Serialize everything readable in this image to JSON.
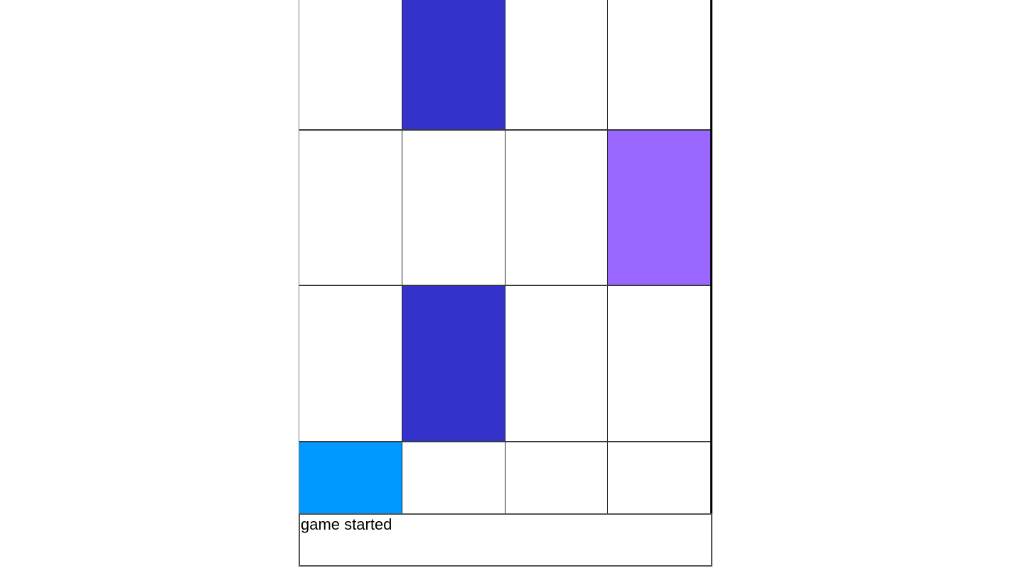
{
  "status": {
    "message": "game started"
  },
  "board": {
    "rows": 4,
    "columns": 4,
    "tiles": [
      {
        "row": 1,
        "col": 2,
        "color": "#3333CC",
        "name": "tile-indigo-top"
      },
      {
        "row": 2,
        "col": 4,
        "color": "#9966FF",
        "name": "tile-purple"
      },
      {
        "row": 3,
        "col": 2,
        "color": "#3333CC",
        "name": "tile-indigo-mid"
      },
      {
        "row": 4,
        "col": 1,
        "color": "#0099FF",
        "name": "tile-azure-bottom"
      }
    ]
  },
  "colors": {
    "background": "#FFFFFF",
    "tile_indigo": "#3333CC",
    "tile_purple": "#9966FF",
    "tile_azure": "#0099FF",
    "grid_line": "#3A3A3A",
    "board_right_border": "#000000",
    "board_left_border": "#777777",
    "status_border": "#555555",
    "status_text": "#000000"
  }
}
